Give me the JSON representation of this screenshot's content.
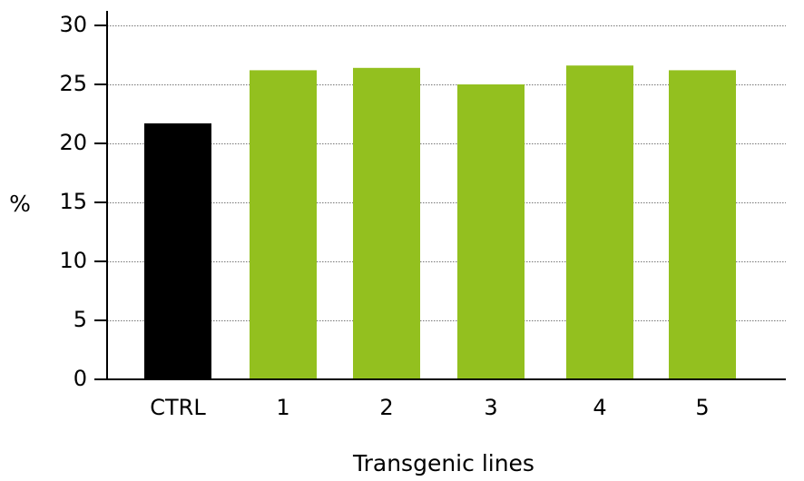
{
  "chart_data": {
    "type": "bar",
    "categories": [
      "CTRL",
      "1",
      "2",
      "3",
      "4",
      "5"
    ],
    "values": [
      21.7,
      26.2,
      26.4,
      25.0,
      26.6,
      26.2
    ],
    "title": "",
    "xlabel": "Transgenic lines",
    "ylabel": "%",
    "ylim": [
      0,
      30
    ],
    "yticks": [
      "0",
      "5",
      "10",
      "15",
      "20",
      "25",
      "30"
    ],
    "grid": true,
    "legend": "none",
    "colors": {
      "control": "#000000",
      "transgenic": "#93c01f"
    }
  }
}
